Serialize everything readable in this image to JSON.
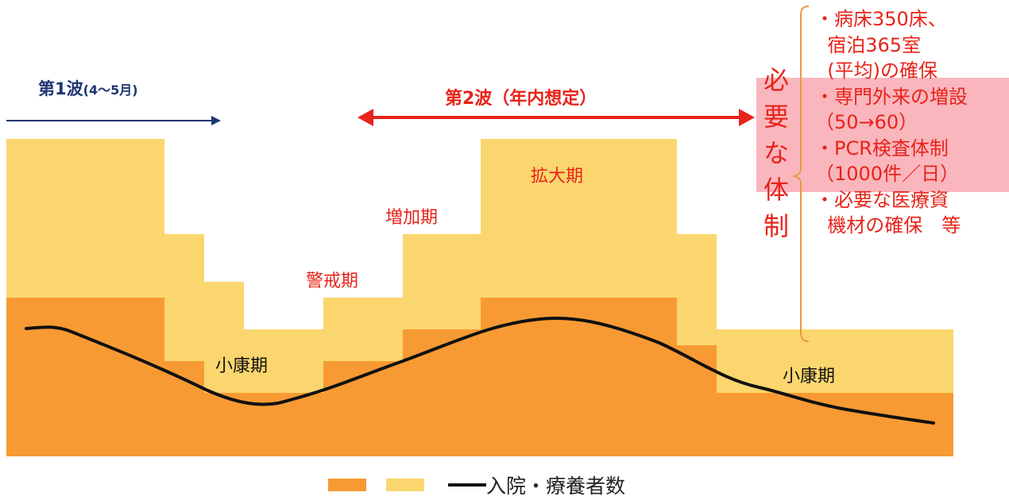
{
  "colors": {
    "fill_upper": "#fbd66e",
    "fill_lower": "#f89a33",
    "curve": "#111111",
    "accent_red": "#e8231a",
    "navy": "#1f3570",
    "highlight": "#f9aeb6"
  },
  "wave1": {
    "label": "第1波",
    "period": "(4～5月)"
  },
  "wave2": {
    "label": "第2波（年内想定）"
  },
  "phases": {
    "keikai": "警戒期",
    "zouka": "増加期",
    "kakudai": "拡大期",
    "shoukou_1": "小康期",
    "shoukou_2": "小康期"
  },
  "required_system": {
    "title": "必要な体制"
  },
  "bullets": [
    "・病床350床、",
    "  宿泊365室",
    "  (平均)の確保",
    "・専門外来の増設",
    "（50→60）",
    "・PCR検査体制",
    "（1000件／日）",
    "・必要な医療資",
    "  機材の確保　等"
  ],
  "legend": {
    "line_label": "入院・療養者数"
  }
}
